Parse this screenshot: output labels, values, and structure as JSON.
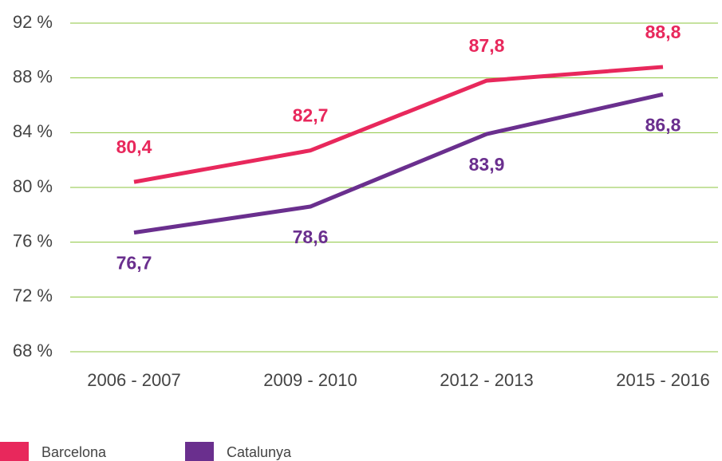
{
  "chart_data": {
    "type": "line",
    "categories": [
      "2006 - 2007",
      "2009 - 2010",
      "2012 - 2013",
      "2015 - 2016"
    ],
    "series": [
      {
        "name": "Barcelona",
        "color": "#e8285c",
        "values": [
          80.4,
          82.7,
          87.8,
          88.8
        ],
        "value_labels": [
          "80,4",
          "82,7",
          "87,8",
          "88,8"
        ]
      },
      {
        "name": "Catalunya",
        "color": "#6a2f8e",
        "values": [
          76.7,
          78.6,
          83.9,
          86.8
        ],
        "value_labels": [
          "76,7",
          "78,6",
          "83,9",
          "86,8"
        ]
      }
    ],
    "ylim": [
      68,
      92
    ],
    "yticks": [
      {
        "value": 68,
        "label": "68 %"
      },
      {
        "value": 72,
        "label": "72 %"
      },
      {
        "value": 76,
        "label": "76 %"
      },
      {
        "value": 80,
        "label": "80 %"
      },
      {
        "value": 84,
        "label": "84 %"
      },
      {
        "value": 88,
        "label": "88 %"
      },
      {
        "value": 92,
        "label": "92 %"
      }
    ],
    "grid": true,
    "grid_color": "#8dc63f",
    "legend": "bottom-left"
  }
}
